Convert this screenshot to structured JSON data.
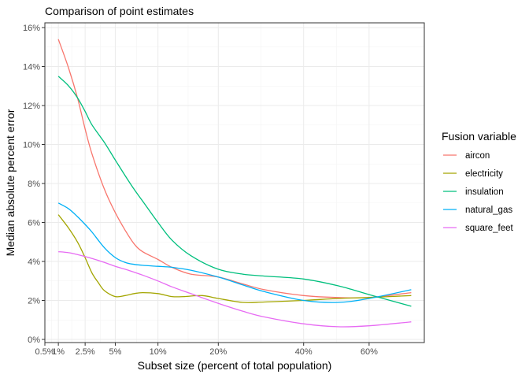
{
  "chart_data": {
    "type": "line",
    "title": "Comparison of point estimates",
    "xlabel": "Subset size (percent of total population)",
    "ylabel": "Median absolute percent error",
    "x_scale": "sqrt",
    "xlim": [
      0.5,
      80
    ],
    "ylim": [
      0,
      16
    ],
    "x_ticks": [
      {
        "value": 0.5,
        "label": "0.5%"
      },
      {
        "value": 1,
        "label": "1%"
      },
      {
        "value": 2.5,
        "label": "2.5%"
      },
      {
        "value": 5,
        "label": "5%"
      },
      {
        "value": 10,
        "label": "10%"
      },
      {
        "value": 20,
        "label": "20%"
      },
      {
        "value": 40,
        "label": "40%"
      },
      {
        "value": 60,
        "label": "60%"
      }
    ],
    "y_ticks": [
      {
        "value": 0,
        "label": "0%"
      },
      {
        "value": 2,
        "label": "2%"
      },
      {
        "value": 4,
        "label": "4%"
      },
      {
        "value": 6,
        "label": "6%"
      },
      {
        "value": 8,
        "label": "8%"
      },
      {
        "value": 10,
        "label": "10%"
      },
      {
        "value": 12,
        "label": "12%"
      },
      {
        "value": 14,
        "label": "14%"
      },
      {
        "value": 16,
        "label": "16%"
      }
    ],
    "legend": {
      "title": "Fusion variable",
      "position": "right"
    },
    "series": [
      {
        "name": "aircon",
        "color": "#F8766D",
        "x": [
          1,
          1.5,
          2,
          2.5,
          3,
          4,
          5,
          6,
          7,
          8,
          10,
          12,
          15,
          20,
          25,
          30,
          40,
          50,
          60,
          75
        ],
        "y": [
          15.4,
          13.9,
          12.4,
          10.8,
          9.5,
          7.7,
          6.5,
          5.6,
          4.9,
          4.5,
          4.1,
          3.7,
          3.35,
          3.2,
          2.85,
          2.55,
          2.25,
          2.15,
          2.15,
          2.4
        ]
      },
      {
        "name": "electricity",
        "color": "#A3A500",
        "x": [
          1,
          1.5,
          2,
          2.5,
          3,
          3.5,
          4,
          5,
          6,
          7,
          8,
          10,
          12,
          14,
          17,
          20,
          25,
          30,
          40,
          50,
          60,
          75
        ],
        "y": [
          6.4,
          5.7,
          5.0,
          4.2,
          3.4,
          2.9,
          2.5,
          2.2,
          2.25,
          2.35,
          2.4,
          2.35,
          2.2,
          2.2,
          2.25,
          2.1,
          1.9,
          1.92,
          2.0,
          2.1,
          2.15,
          2.25
        ]
      },
      {
        "name": "insulation",
        "color": "#00BF7D",
        "x": [
          1,
          1.5,
          2,
          2.5,
          3,
          4,
          5,
          6,
          7,
          8,
          10,
          12,
          15,
          20,
          25,
          30,
          40,
          50,
          60,
          75
        ],
        "y": [
          13.5,
          13.0,
          12.4,
          11.7,
          11.0,
          10.1,
          9.2,
          8.4,
          7.7,
          7.1,
          6.0,
          5.1,
          4.3,
          3.6,
          3.35,
          3.25,
          3.1,
          2.75,
          2.3,
          1.7
        ]
      },
      {
        "name": "natural_gas",
        "color": "#00B0F6",
        "x": [
          1,
          1.5,
          2,
          2.5,
          3,
          4,
          5,
          6,
          7,
          8,
          10,
          12,
          15,
          20,
          25,
          30,
          40,
          50,
          60,
          75
        ],
        "y": [
          7.0,
          6.7,
          6.3,
          5.9,
          5.5,
          4.7,
          4.2,
          3.95,
          3.85,
          3.8,
          3.75,
          3.7,
          3.55,
          3.2,
          2.8,
          2.45,
          2.0,
          1.9,
          2.1,
          2.55
        ]
      },
      {
        "name": "square_feet",
        "color": "#E76BF3",
        "x": [
          1,
          1.5,
          2,
          2.5,
          3,
          4,
          5,
          6,
          7,
          8,
          10,
          12,
          15,
          20,
          25,
          30,
          40,
          50,
          60,
          75
        ],
        "y": [
          4.5,
          4.45,
          4.35,
          4.25,
          4.15,
          3.95,
          3.75,
          3.6,
          3.45,
          3.3,
          3.0,
          2.7,
          2.35,
          1.85,
          1.45,
          1.15,
          0.8,
          0.65,
          0.7,
          0.9
        ]
      }
    ]
  }
}
